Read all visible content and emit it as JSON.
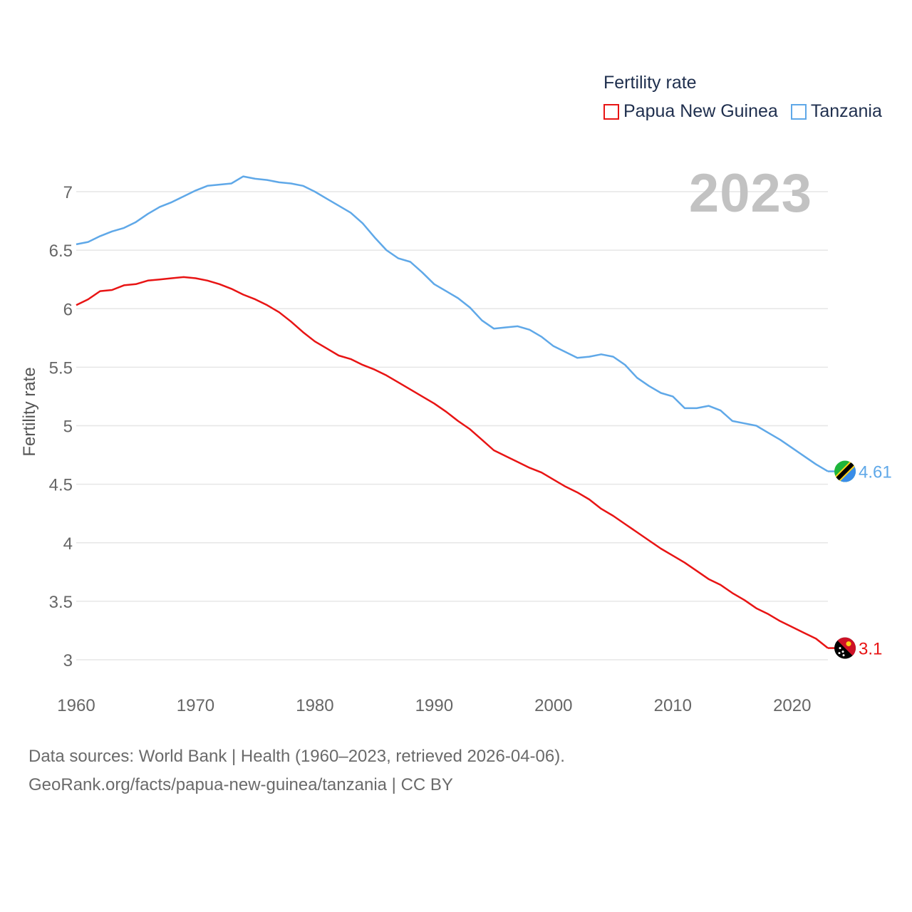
{
  "legend": {
    "title": "Fertility rate",
    "items": [
      {
        "label": "Papua New Guinea",
        "color": "#e81414"
      },
      {
        "label": "Tanzania",
        "color": "#5fa8e8"
      }
    ]
  },
  "current_year": "2023",
  "footer": {
    "line1": "Data sources: World Bank | Health (1960–2023, retrieved 2026-04-06).",
    "line2": "GeoRank.org/facts/papua-new-guinea/tanzania | CC BY"
  },
  "end_labels": {
    "tanzania": "4.61",
    "png": "3.1"
  },
  "chart_data": {
    "type": "line",
    "title": "",
    "xlabel": "",
    "ylabel": "Fertility rate",
    "xlim": [
      1960,
      2023
    ],
    "ylim": [
      2.75,
      7.15
    ],
    "x_ticks": [
      1960,
      1970,
      1980,
      1990,
      2000,
      2010,
      2020
    ],
    "y_ticks": [
      3,
      3.5,
      4,
      4.5,
      5,
      5.5,
      6,
      6.5,
      7
    ],
    "y_tick_labels": [
      "3",
      "3.5",
      "4",
      "4.5",
      "5",
      "5.5",
      "6",
      "6.5",
      "7"
    ],
    "x": [
      1960,
      1961,
      1962,
      1963,
      1964,
      1965,
      1966,
      1967,
      1968,
      1969,
      1970,
      1971,
      1972,
      1973,
      1974,
      1975,
      1976,
      1977,
      1978,
      1979,
      1980,
      1981,
      1982,
      1983,
      1984,
      1985,
      1986,
      1987,
      1988,
      1989,
      1990,
      1991,
      1992,
      1993,
      1994,
      1995,
      1996,
      1997,
      1998,
      1999,
      2000,
      2001,
      2002,
      2003,
      2004,
      2005,
      2006,
      2007,
      2008,
      2009,
      2010,
      2011,
      2012,
      2013,
      2014,
      2015,
      2016,
      2017,
      2018,
      2019,
      2020,
      2021,
      2022,
      2023
    ],
    "series": [
      {
        "name": "Tanzania",
        "color": "#5fa8e8",
        "values": [
          6.55,
          6.57,
          6.62,
          6.66,
          6.69,
          6.74,
          6.81,
          6.87,
          6.91,
          6.96,
          7.01,
          7.05,
          7.06,
          7.07,
          7.13,
          7.11,
          7.1,
          7.08,
          7.07,
          7.05,
          7.0,
          6.94,
          6.88,
          6.82,
          6.73,
          6.61,
          6.5,
          6.43,
          6.4,
          6.31,
          6.21,
          6.15,
          6.09,
          6.01,
          5.9,
          5.83,
          5.84,
          5.85,
          5.82,
          5.76,
          5.68,
          5.63,
          5.58,
          5.59,
          5.61,
          5.59,
          5.52,
          5.41,
          5.34,
          5.28,
          5.25,
          5.15,
          5.15,
          5.17,
          5.13,
          5.04,
          5.02,
          5.0,
          4.94,
          4.88,
          4.81,
          4.74,
          4.67,
          4.61
        ]
      },
      {
        "name": "Papua New Guinea",
        "color": "#e81414",
        "values": [
          6.03,
          6.08,
          6.15,
          6.16,
          6.2,
          6.21,
          6.24,
          6.25,
          6.26,
          6.27,
          6.26,
          6.24,
          6.21,
          6.17,
          6.12,
          6.08,
          6.03,
          5.97,
          5.89,
          5.8,
          5.72,
          5.66,
          5.6,
          5.57,
          5.52,
          5.48,
          5.43,
          5.37,
          5.31,
          5.25,
          5.19,
          5.12,
          5.04,
          4.97,
          4.88,
          4.79,
          4.74,
          4.69,
          4.64,
          4.6,
          4.54,
          4.48,
          4.43,
          4.37,
          4.29,
          4.23,
          4.16,
          4.09,
          4.02,
          3.95,
          3.89,
          3.83,
          3.76,
          3.69,
          3.64,
          3.57,
          3.51,
          3.44,
          3.39,
          3.33,
          3.28,
          3.23,
          3.18,
          3.1
        ]
      }
    ]
  }
}
